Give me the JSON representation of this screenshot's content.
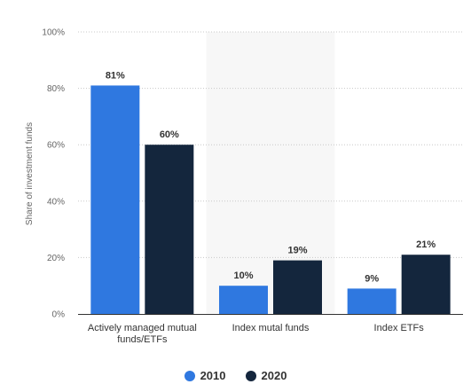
{
  "chart_data": {
    "type": "bar",
    "categories": [
      "Actively managed mutual funds/ETFs",
      "Index mutal funds",
      "Index ETFs"
    ],
    "category_label_lines": [
      [
        "Actively managed mutual",
        "funds/ETFs"
      ],
      [
        "Index mutal funds"
      ],
      [
        "Index ETFs"
      ]
    ],
    "series": [
      {
        "name": "2010",
        "values": [
          81,
          10,
          9
        ],
        "labels": [
          "81%",
          "10%",
          "9%"
        ],
        "color": "#2f78e0"
      },
      {
        "name": "2020",
        "values": [
          60,
          19,
          21
        ],
        "labels": [
          "60%",
          "19%",
          "21%"
        ],
        "color": "#14263d"
      }
    ],
    "ylabel": "Share of investment funds",
    "ylim": [
      0,
      100
    ],
    "yticks": [
      0,
      20,
      40,
      60,
      80,
      100
    ],
    "ytick_labels": [
      "0%",
      "20%",
      "40%",
      "60%",
      "80%",
      "100%"
    ],
    "grid": true,
    "highlighted_category_index": 1,
    "highlight_color": "#f7f7f7",
    "legend_position": "bottom"
  }
}
